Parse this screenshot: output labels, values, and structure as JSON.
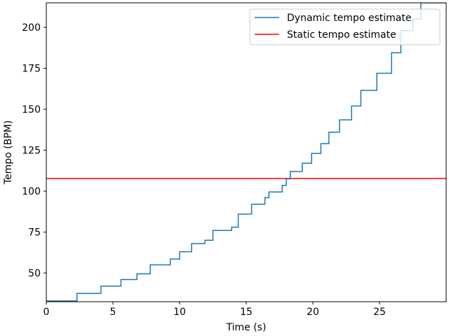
{
  "chart_data": {
    "type": "line",
    "title": "",
    "xlabel": "Time (s)",
    "ylabel": "Tempo (BPM)",
    "xlim": [
      0,
      30
    ],
    "ylim": [
      32.5,
      215
    ],
    "xticks": [
      0,
      5,
      10,
      15,
      20,
      25
    ],
    "yticks": [
      50,
      75,
      100,
      125,
      150,
      175,
      200
    ],
    "grid": false,
    "legend": "upper right",
    "colors": {
      "dynamic": "#1f77b4",
      "static": "#ff0000",
      "frame": "#000000",
      "legend_border": "#cccccc"
    },
    "series": [
      {
        "name": "Dynamic tempo estimate",
        "style": "step",
        "color": "#1f77b4",
        "x": [
          0.0,
          2.3,
          4.1,
          5.6,
          6.8,
          7.8,
          9.3,
          10.0,
          10.9,
          11.9,
          12.5,
          13.9,
          14.4,
          15.4,
          16.4,
          16.7,
          17.7,
          18.0,
          18.3,
          19.2,
          19.9,
          20.6,
          21.2,
          22.0,
          22.9,
          23.6,
          24.8,
          25.9,
          26.6,
          27.5,
          28.1,
          28.9,
          29.5
        ],
        "y": [
          33,
          37.5,
          42,
          46,
          49.5,
          55,
          58.5,
          63,
          68,
          70,
          76,
          78,
          86,
          92,
          96,
          99.5,
          103.5,
          107.5,
          112,
          117,
          123,
          129,
          136,
          143.5,
          152,
          161.5,
          172,
          184.5,
          198,
          205,
          215,
          215,
          215
        ]
      },
      {
        "name": "Static tempo estimate",
        "style": "hline",
        "color": "#ff0000",
        "y": 107.7
      }
    ]
  }
}
